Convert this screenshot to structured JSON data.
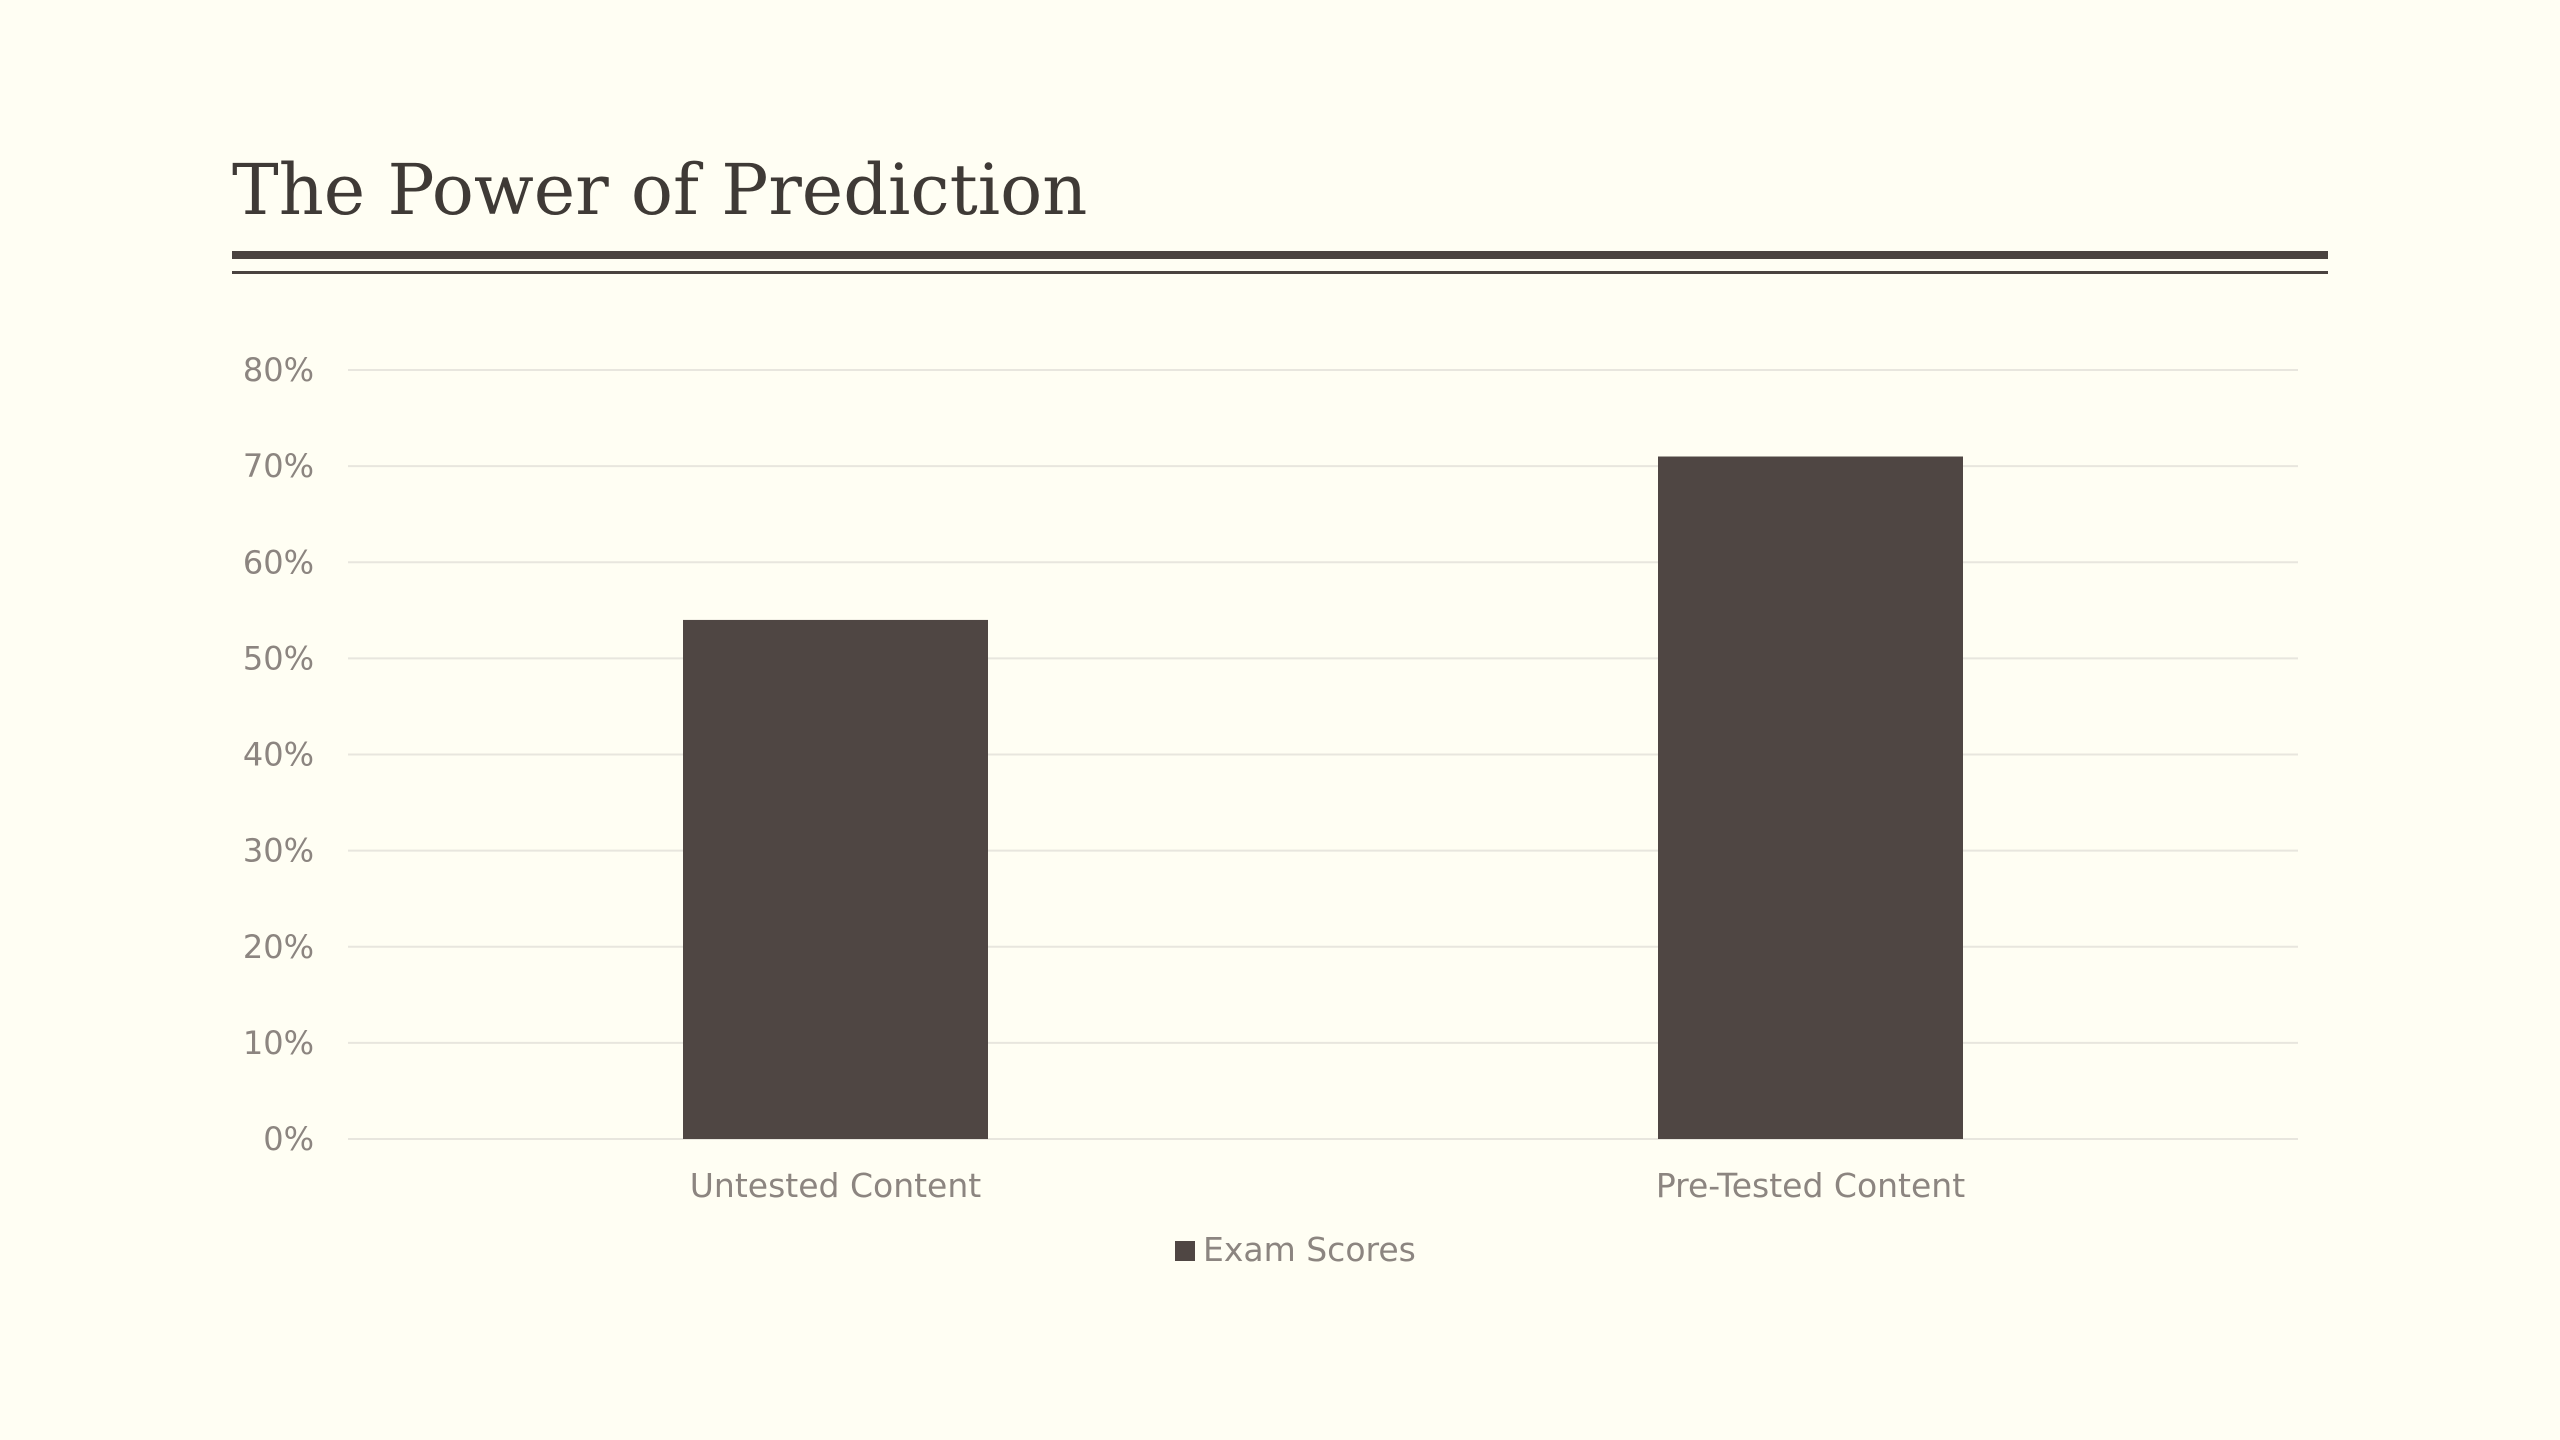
{
  "slide": {
    "title": "The Power of Prediction"
  },
  "chart_data": {
    "type": "bar",
    "categories": [
      "Untested Content",
      "Pre-Tested Content"
    ],
    "series": [
      {
        "name": "Exam Scores",
        "values": [
          54,
          71
        ]
      }
    ],
    "yticks": [
      "0%",
      "10%",
      "20%",
      "30%",
      "40%",
      "50%",
      "60%",
      "70%",
      "80%"
    ],
    "ylim": [
      0,
      80
    ],
    "unit": "%",
    "grid": true,
    "legend": "bottom",
    "bar_color": "#4F4643",
    "grid_color": "#E8E6DE"
  }
}
